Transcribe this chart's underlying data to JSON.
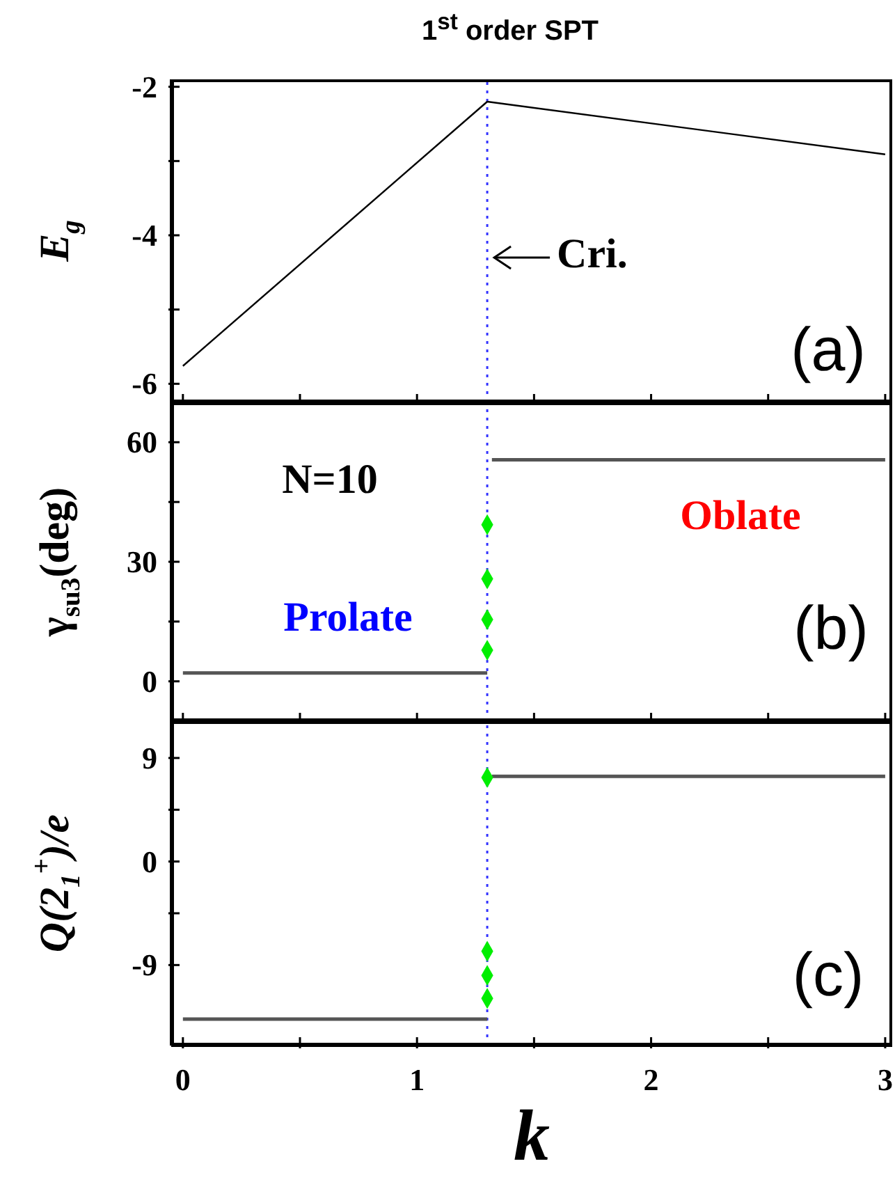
{
  "chart_data": [
    {
      "type": "line",
      "title": "1$^{st}$ order SPT",
      "ylabel": "E$_{g}$",
      "xlim": [
        -0.05,
        3.03
      ],
      "xticks": [
        0,
        {
          "value": 0.5,
          "label": null
        },
        1,
        {
          "value": 1.5,
          "label": null
        },
        2,
        {
          "value": 2.5,
          "label": null
        },
        3
      ],
      "ylim": [
        -6.25,
        -1.9
      ],
      "yticks": [
        -6,
        {
          "value": -5,
          "label": null
        },
        -4,
        {
          "value": -3,
          "label": null
        },
        -2
      ],
      "tick_labels": "y",
      "series": [
        {
          "color": "#000000",
          "x": [
            0,
            1.3,
            3
          ],
          "values": [
            -5.76,
            -2.2,
            -2.91
          ]
        }
      ],
      "ref_lines": [
        {
          "axis": "x",
          "value": 1.3,
          "color": "#3333ff",
          "line_style": "dotted"
        }
      ],
      "annotations": [
        {
          "text": "Cri.",
          "x": 1.3,
          "y": -4.3
        },
        "(a)"
      ]
    },
    {
      "type": "line",
      "ylabel": "γ$_{su3}$(deg)",
      "xlim": [
        -0.05,
        3.03
      ],
      "xticks": [
        0,
        {
          "value": 0.5,
          "label": null
        },
        1,
        {
          "value": 1.5,
          "label": null
        },
        2,
        {
          "value": 2.5,
          "label": null
        },
        3
      ],
      "ylim": [
        -10,
        70
      ],
      "yticks": [
        0,
        {
          "value": 15,
          "label": null
        },
        30,
        {
          "value": 45,
          "label": null
        },
        60
      ],
      "tick_labels": "y",
      "series": [
        {
          "color": "#555555",
          "x": [
            0,
            1.3
          ],
          "values": [
            2.1,
            2.1
          ]
        },
        {
          "color": "#555555",
          "x": [
            1.32,
            3
          ],
          "values": [
            55.6,
            55.6
          ]
        },
        {
          "type": "scatter",
          "color": "#00ee00",
          "marker": "diamond",
          "x": [
            1.3,
            1.3,
            1.3,
            1.3
          ],
          "values": [
            39.3,
            25.7,
            15.5,
            7.8
          ]
        }
      ],
      "ref_lines": [
        {
          "axis": "x",
          "value": 1.3,
          "color": "#3333ff",
          "line_style": "dotted"
        }
      ],
      "annotations": [
        "N=10",
        "Prolate",
        "Oblate",
        "(b)"
      ]
    },
    {
      "type": "line",
      "xlabel": "k",
      "ylabel": "Q(2$_{1}$$^{+}$)/e",
      "xlim": [
        -0.05,
        3.03
      ],
      "xticks": [
        0,
        {
          "value": 0.5,
          "label": null
        },
        1,
        {
          "value": 1.5,
          "label": null
        },
        2,
        {
          "value": 2.5,
          "label": null
        },
        3
      ],
      "ylim": [
        -16,
        12.2
      ],
      "yticks": [
        -9,
        {
          "value": -4.5,
          "label": null
        },
        0,
        {
          "value": 4.5,
          "label": null
        },
        9
      ],
      "series": [
        {
          "color": "#555555",
          "x": [
            0,
            1.3
          ],
          "values": [
            -13.7,
            -13.7
          ]
        },
        {
          "color": "#555555",
          "x": [
            1.32,
            3
          ],
          "values": [
            7.4,
            7.4
          ]
        },
        {
          "type": "scatter",
          "color": "#00ee00",
          "marker": "diamond",
          "x": [
            1.3,
            1.3,
            1.3,
            1.3
          ],
          "values": [
            7.3,
            -7.8,
            -9.9,
            -11.9
          ]
        }
      ],
      "ref_lines": [
        {
          "axis": "x",
          "value": 1.3,
          "color": "#3333ff",
          "line_style": "dotted"
        }
      ],
      "annotations": [
        "(c)"
      ]
    }
  ]
}
